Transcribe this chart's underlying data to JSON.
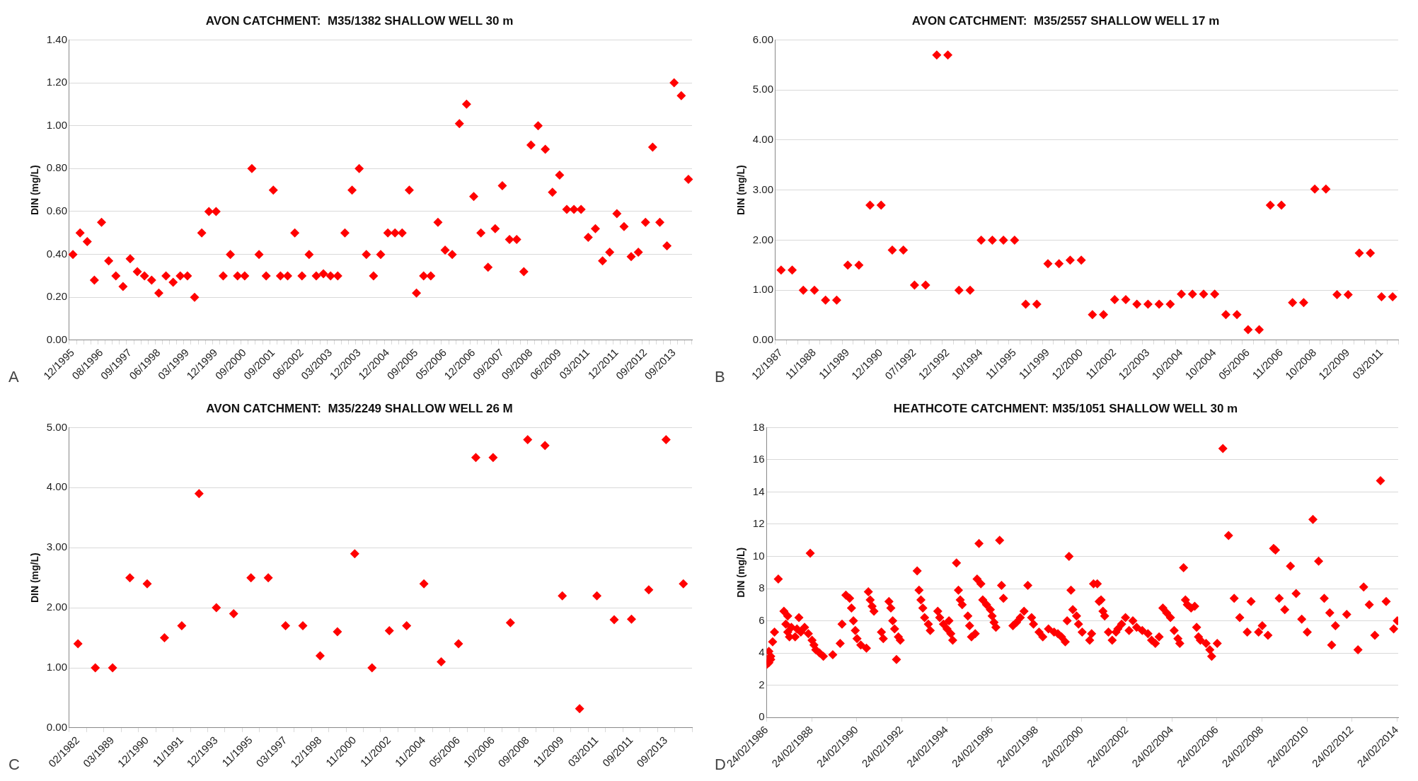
{
  "chart_data": [
    {
      "type": "scatter",
      "title": "AVON CATCHMENT:  M35/1382 SHALLOW WELL 30 m",
      "ylabel": "DIN (mg/L)",
      "marker": "diamond",
      "grid": "y",
      "annotations": [
        "A"
      ],
      "categories": [
        "12/1995",
        null,
        null,
        null,
        "08/1996",
        null,
        null,
        null,
        "09/1997",
        null,
        null,
        null,
        "06/1998",
        null,
        null,
        null,
        "03/1999",
        null,
        null,
        null,
        "12/1999",
        null,
        null,
        null,
        "09/2000",
        null,
        null,
        null,
        "09/2001",
        null,
        null,
        null,
        "06/2002",
        null,
        null,
        null,
        "03/2003",
        null,
        null,
        null,
        "12/2003",
        null,
        null,
        null,
        "12/2004",
        null,
        null,
        null,
        "09/2005",
        null,
        null,
        null,
        "05/2006",
        null,
        null,
        null,
        "12/2006",
        null,
        null,
        null,
        "09/2007",
        null,
        null,
        null,
        "09/2008",
        null,
        null,
        null,
        "06/2009",
        null,
        null,
        null,
        "03/2011",
        null,
        null,
        null,
        "12/2011",
        null,
        null,
        null,
        "09/2012",
        null,
        null,
        null,
        "09/2013",
        null,
        null
      ],
      "ylim": [
        0,
        1.4
      ],
      "yticks": [
        {
          "value": 0,
          "label": "0.00"
        },
        {
          "value": 0.2,
          "label": "0.20"
        },
        {
          "value": 0.4,
          "label": "0.40"
        },
        {
          "value": 0.6,
          "label": "0.60"
        },
        {
          "value": 0.8,
          "label": "0.80"
        },
        {
          "value": 1,
          "label": "1.00"
        },
        {
          "value": 1.2,
          "label": "1.20"
        },
        {
          "value": 1.4,
          "label": "1.40"
        }
      ],
      "series": [
        {
          "color": "#ff0000",
          "values": [
            0.4,
            0.5,
            0.46,
            0.28,
            0.55,
            0.37,
            0.3,
            0.25,
            0.38,
            0.32,
            0.3,
            0.28,
            0.22,
            0.3,
            0.27,
            0.3,
            0.3,
            0.2,
            0.5,
            0.6,
            0.6,
            0.3,
            0.4,
            0.3,
            0.3,
            0.8,
            0.4,
            0.3,
            0.7,
            0.3,
            0.3,
            0.5,
            0.3,
            0.4,
            0.3,
            0.31,
            0.3,
            0.3,
            0.5,
            0.7,
            0.8,
            0.4,
            0.3,
            0.4,
            0.5,
            0.5,
            0.5,
            0.7,
            0.22,
            0.3,
            0.3,
            0.55,
            0.42,
            0.4,
            1.01,
            1.1,
            0.67,
            0.5,
            0.34,
            0.52,
            0.72,
            0.47,
            0.47,
            0.32,
            0.91,
            1.0,
            0.89,
            0.69,
            0.77,
            0.61,
            0.61,
            0.61,
            0.48,
            0.52,
            0.37,
            0.41,
            0.59,
            0.53,
            0.39,
            0.41,
            0.55,
            0.9,
            0.55,
            0.44,
            1.2,
            1.14,
            0.75
          ]
        }
      ]
    },
    {
      "type": "scatter",
      "title": "AVON CATCHMENT:  M35/2557 SHALLOW WELL 17 m",
      "ylabel": "DIN (mg/L)",
      "marker": "diamond",
      "grid": "y",
      "annotations": [
        "B"
      ],
      "categories": [
        "12/1987",
        null,
        null,
        "11/1988",
        null,
        null,
        "11/1989",
        null,
        null,
        "12/1990",
        null,
        null,
        "07/1992",
        null,
        null,
        "12/1992",
        null,
        null,
        "10/1994",
        null,
        null,
        "11/1995",
        null,
        null,
        "11/1999",
        null,
        null,
        "12/2000",
        null,
        null,
        "11/2002",
        null,
        null,
        "12/2003",
        null,
        null,
        "10/2004",
        null,
        null,
        "10/2004",
        null,
        null,
        "05/2006",
        null,
        null,
        "11/2006",
        null,
        null,
        "10/2008",
        null,
        null,
        "12/2009",
        null,
        null,
        "03/2011",
        null
      ],
      "ylim": [
        0,
        6
      ],
      "yticks": [
        {
          "value": 0,
          "label": "0.00"
        },
        {
          "value": 1,
          "label": "1.00"
        },
        {
          "value": 2,
          "label": "2.00"
        },
        {
          "value": 3,
          "label": "3.00"
        },
        {
          "value": 4,
          "label": "4.00"
        },
        {
          "value": 5,
          "label": "5.00"
        },
        {
          "value": 6,
          "label": "6.00"
        }
      ],
      "series": [
        {
          "color": "#ff0000",
          "values": [
            1.4,
            1.4,
            1.0,
            1.0,
            0.8,
            0.8,
            1.5,
            1.5,
            2.7,
            2.7,
            1.8,
            1.8,
            1.1,
            1.1,
            5.7,
            5.7,
            1.0,
            1.0,
            2.0,
            2.0,
            2.0,
            2.0,
            0.72,
            0.72,
            1.53,
            1.53,
            1.6,
            1.6,
            0.51,
            0.51,
            0.81,
            0.81,
            0.72,
            0.72,
            0.72,
            0.72,
            0.92,
            0.92,
            0.92,
            0.92,
            0.51,
            0.51,
            0.21,
            0.21,
            2.7,
            2.7,
            0.75,
            0.75,
            3.02,
            3.02,
            0.91,
            0.91,
            1.74,
            1.74,
            0.87,
            0.87
          ]
        }
      ]
    },
    {
      "type": "scatter",
      "title": "AVON CATCHMENT:  M35/2249 SHALLOW WELL 26 M",
      "ylabel": "DIN (mg/L)",
      "marker": "diamond",
      "grid": "y",
      "annotations": [
        "C"
      ],
      "categories": [
        "02/1982",
        null,
        "03/1989",
        null,
        "12/1990",
        null,
        "11/1991",
        null,
        "12/1993",
        null,
        "11/1995",
        null,
        "03/1997",
        null,
        "12/1998",
        null,
        "11/2000",
        null,
        "11/2002",
        null,
        "11/2004",
        null,
        "05/2006",
        null,
        "10/2006",
        null,
        "09/2008",
        null,
        "11/2009",
        null,
        "03/2011",
        null,
        "09/2011",
        null,
        "09/2013",
        null
      ],
      "ylim": [
        0,
        5
      ],
      "yticks": [
        {
          "value": 0,
          "label": "0.00"
        },
        {
          "value": 1,
          "label": "1.00"
        },
        {
          "value": 2,
          "label": "2.00"
        },
        {
          "value": 3,
          "label": "3.00"
        },
        {
          "value": 4,
          "label": "4.00"
        },
        {
          "value": 5,
          "label": "5.00"
        }
      ],
      "series": [
        {
          "color": "#ff0000",
          "values": [
            1.4,
            1.0,
            1.0,
            2.5,
            2.4,
            1.5,
            1.7,
            3.9,
            2.0,
            1.9,
            2.5,
            2.5,
            1.7,
            1.7,
            1.2,
            1.6,
            2.9,
            1.0,
            1.62,
            1.7,
            2.4,
            1.1,
            1.4,
            4.5,
            4.5,
            1.75,
            4.8,
            4.7,
            2.2,
            0.32,
            2.2,
            1.8,
            1.81,
            2.3,
            4.8,
            2.4
          ]
        }
      ]
    },
    {
      "type": "scatter",
      "title": "HEATHCOTE CATCHMENT: M35/1051 SHALLOW WELL 30 m",
      "ylabel": "DIN (mg/L)",
      "marker": "diamond",
      "grid": "y",
      "annotations": [
        "D"
      ],
      "xlim": [
        "1986-02-24",
        "2014-03-15"
      ],
      "xticks": [
        {
          "value": "1986-02-24",
          "label": "24/02/1986"
        },
        {
          "value": "1988-02-24",
          "label": "24/02/1988"
        },
        {
          "value": "1990-02-24",
          "label": "24/02/1990"
        },
        {
          "value": "1992-02-24",
          "label": "24/02/1992"
        },
        {
          "value": "1994-02-24",
          "label": "24/02/1994"
        },
        {
          "value": "1996-02-24",
          "label": "24/02/1996"
        },
        {
          "value": "1998-02-24",
          "label": "24/02/1998"
        },
        {
          "value": "2000-02-24",
          "label": "24/02/2000"
        },
        {
          "value": "2002-02-24",
          "label": "24/02/2002"
        },
        {
          "value": "2004-02-24",
          "label": "24/02/2004"
        },
        {
          "value": "2006-02-24",
          "label": "24/02/2006"
        },
        {
          "value": "2008-02-24",
          "label": "24/02/2008"
        },
        {
          "value": "2010-02-24",
          "label": "24/02/2010"
        },
        {
          "value": "2012-02-24",
          "label": "24/02/2012"
        },
        {
          "value": "2014-02-24",
          "label": "24/02/2014"
        }
      ],
      "ylim": [
        0,
        18
      ],
      "yticks": [
        0,
        2,
        4,
        6,
        8,
        10,
        12,
        14,
        16,
        18
      ],
      "series": [
        {
          "color": "#ff0000",
          "x": [
            "1986-03",
            "1986-03",
            "1986-04",
            "1986-04",
            "1986-05",
            "1986-05",
            "1986-06",
            "1986-07",
            "1986-09",
            "1986-12",
            "1987-01",
            "1987-02",
            "1987-02",
            "1987-03",
            "1987-04",
            "1987-06",
            "1987-07",
            "1987-08",
            "1987-09",
            "1987-11",
            "1988-01",
            "1988-02",
            "1988-03",
            "1988-04",
            "1988-05",
            "1988-07",
            "1988-09",
            "1989-02",
            "1989-06",
            "1989-07",
            "1989-09",
            "1989-11",
            "1989-12",
            "1990-01",
            "1990-02",
            "1990-03",
            "1990-05",
            "1990-08",
            "1990-09",
            "1990-10",
            "1990-11",
            "1990-12",
            "1991-04",
            "1991-05",
            "1991-08",
            "1991-09",
            "1991-10",
            "1991-11",
            "1991-12",
            "1992-01",
            "1992-02",
            "1992-11",
            "1992-12",
            "1993-01",
            "1993-02",
            "1993-03",
            "1993-05",
            "1993-06",
            "1993-10",
            "1993-11",
            "1994-01",
            "1994-03",
            "1994-04",
            "1994-05",
            "1994-06",
            "1994-08",
            "1994-09",
            "1994-10",
            "1994-11",
            "1995-02",
            "1995-03",
            "1995-04",
            "1995-06",
            "1995-07",
            "1995-08",
            "1995-09",
            "1995-10",
            "1995-12",
            "1996-02",
            "1996-03",
            "1996-04",
            "1996-05",
            "1996-07",
            "1996-08",
            "1996-09",
            "1997-02",
            "1997-04",
            "1997-06",
            "1997-08",
            "1997-10",
            "1997-12",
            "1998-01",
            "1998-04",
            "1998-06",
            "1998-09",
            "1998-12",
            "1999-02",
            "1999-04",
            "1999-06",
            "1999-07",
            "1999-08",
            "1999-09",
            "1999-10",
            "1999-12",
            "2000-01",
            "2000-03",
            "2000-07",
            "2000-08",
            "2000-09",
            "2000-11",
            "2000-12",
            "2001-01",
            "2001-02",
            "2001-03",
            "2001-05",
            "2001-07",
            "2001-09",
            "2001-10",
            "2001-12",
            "2002-02",
            "2002-04",
            "2002-06",
            "2002-08",
            "2002-11",
            "2003-02",
            "2003-04",
            "2003-06",
            "2003-08",
            "2003-10",
            "2003-12",
            "2004-02",
            "2004-04",
            "2004-06",
            "2004-07",
            "2004-09",
            "2004-10",
            "2004-11",
            "2005-01",
            "2005-03",
            "2005-04",
            "2005-05",
            "2005-06",
            "2005-09",
            "2005-11",
            "2005-12",
            "2006-03",
            "2006-06",
            "2006-09",
            "2006-12",
            "2007-03",
            "2007-07",
            "2007-09",
            "2008-01",
            "2008-03",
            "2008-06",
            "2008-09",
            "2008-10",
            "2008-12",
            "2009-03",
            "2009-06",
            "2009-09",
            "2009-12",
            "2010-03",
            "2010-06",
            "2010-09",
            "2010-12",
            "2011-03",
            "2011-04",
            "2011-06",
            "2011-12",
            "2012-06",
            "2012-09",
            "2012-12",
            "2013-03",
            "2013-06",
            "2013-09",
            "2014-01",
            "2014-03"
          ],
          "values": [
            3.6,
            3.3,
            4.1,
            3.4,
            3.8,
            3.6,
            4.7,
            5.3,
            8.6,
            6.6,
            5.8,
            6.3,
            5.3,
            5.0,
            5.6,
            5.0,
            5.5,
            6.2,
            5.3,
            5.6,
            5.2,
            10.2,
            4.8,
            4.5,
            4.2,
            4.0,
            3.8,
            3.9,
            4.6,
            5.8,
            7.6,
            7.4,
            6.8,
            6.0,
            5.4,
            4.9,
            4.5,
            4.3,
            7.8,
            7.3,
            6.9,
            6.6,
            5.3,
            4.9,
            7.2,
            6.8,
            6.0,
            5.5,
            3.6,
            5.0,
            4.8,
            9.1,
            7.9,
            7.3,
            6.8,
            6.2,
            5.8,
            5.4,
            6.6,
            6.2,
            5.8,
            5.5,
            6.0,
            5.2,
            4.8,
            9.6,
            7.9,
            7.3,
            7.0,
            6.3,
            5.7,
            5.0,
            5.2,
            8.6,
            10.8,
            8.3,
            7.3,
            7.0,
            6.7,
            6.3,
            5.9,
            5.6,
            11.0,
            8.2,
            7.4,
            5.7,
            5.9,
            6.2,
            6.6,
            8.2,
            6.2,
            5.8,
            5.3,
            5.0,
            5.5,
            5.3,
            5.2,
            5.0,
            4.7,
            6.0,
            10.0,
            7.9,
            6.7,
            6.3,
            5.8,
            5.3,
            4.8,
            5.2,
            8.3,
            8.3,
            7.2,
            7.3,
            6.6,
            6.3,
            5.3,
            4.8,
            5.3,
            5.5,
            5.8,
            6.2,
            5.4,
            6.0,
            5.6,
            5.4,
            5.2,
            4.8,
            4.6,
            5.0,
            6.8,
            6.5,
            6.2,
            5.4,
            4.9,
            4.6,
            9.3,
            7.3,
            7.0,
            6.8,
            6.9,
            5.6,
            5.0,
            4.8,
            4.6,
            4.2,
            3.8,
            4.6,
            16.7,
            11.3,
            7.4,
            6.2,
            5.3,
            7.2,
            5.3,
            5.7,
            5.1,
            10.5,
            10.4,
            7.4,
            6.7,
            9.4,
            7.7,
            6.1,
            5.3,
            12.3,
            9.7,
            7.4,
            6.5,
            4.5,
            5.7,
            6.4,
            4.2,
            8.1,
            7.0,
            5.1,
            14.7,
            7.2,
            5.5,
            6.0
          ]
        }
      ]
    }
  ]
}
